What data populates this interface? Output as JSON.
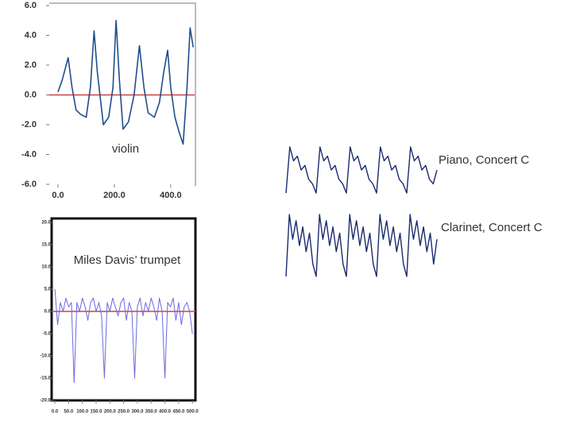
{
  "chart_data": [
    {
      "type": "line",
      "label": "violin",
      "color": "#1f4e8c",
      "zero_line": "#d04040",
      "x": [
        0,
        15,
        36,
        50,
        64,
        80,
        100,
        115,
        128,
        140,
        161,
        180,
        195,
        206,
        218,
        231,
        250,
        270,
        289,
        305,
        320,
        342,
        360,
        375,
        389,
        400,
        415,
        430,
        444,
        458,
        469,
        480
      ],
      "values": [
        0.2,
        1.0,
        2.5,
        0.5,
        -1.0,
        -1.3,
        -1.5,
        0.5,
        4.3,
        1.5,
        -2.0,
        -1.5,
        0.5,
        5.0,
        1.0,
        -2.3,
        -1.8,
        0.0,
        3.3,
        0.5,
        -1.2,
        -1.5,
        -0.5,
        1.5,
        3.0,
        0.5,
        -1.5,
        -2.5,
        -3.3,
        0.5,
        4.5,
        3.2
      ],
      "xlim": [
        -31,
        485
      ],
      "ylim": [
        -6,
        6
      ],
      "xticks": [
        {
          "value": 0,
          "label": "0.0"
        },
        {
          "value": 200,
          "label": "200.0"
        },
        {
          "value": 400,
          "label": "400.0"
        }
      ],
      "yticks": [
        {
          "value": 6,
          "label": "6.0"
        },
        {
          "value": 4,
          "label": "4.0"
        },
        {
          "value": 2,
          "label": "2.0"
        },
        {
          "value": 0,
          "label": "0.0"
        },
        {
          "value": -2,
          "label": "-2.0"
        },
        {
          "value": -4,
          "label": "-4.0"
        },
        {
          "value": -6,
          "label": "-6.0"
        }
      ]
    },
    {
      "type": "line",
      "label": "Miles Davis’ trumpet",
      "color": "#6a6adf",
      "zero_line": "#d04040",
      "x": [
        0,
        10,
        20,
        30,
        40,
        50,
        60,
        70,
        80,
        90,
        100,
        110,
        120,
        130,
        140,
        150,
        160,
        170,
        180,
        190,
        200,
        210,
        220,
        230,
        240,
        250,
        260,
        270,
        280,
        290,
        300,
        310,
        320,
        330,
        340,
        350,
        360,
        370,
        380,
        390,
        400,
        410,
        420,
        430,
        440,
        450,
        460,
        470,
        480,
        490,
        500
      ],
      "values": [
        5,
        -3,
        2,
        0,
        3,
        1,
        2,
        -16,
        2,
        0,
        3,
        1,
        -2,
        2,
        3,
        0,
        2,
        -1,
        -15,
        2,
        0,
        3,
        1,
        -1,
        2,
        3,
        -2,
        2,
        0,
        -15,
        1,
        3,
        -1,
        2,
        0,
        3,
        1,
        -2,
        3,
        0,
        -15,
        2,
        1,
        3,
        -2,
        2,
        -3,
        1,
        2,
        0,
        -5
      ],
      "xlim": [
        -6,
        511
      ],
      "ylim": [
        -20,
        20
      ],
      "xticks": [
        {
          "value": 0,
          "label": "0.0"
        },
        {
          "value": 50,
          "label": "50.0"
        },
        {
          "value": 100,
          "label": "100.0"
        },
        {
          "value": 150,
          "label": "150.0"
        },
        {
          "value": 200,
          "label": "200.0"
        },
        {
          "value": 250,
          "label": "250.0"
        },
        {
          "value": 300,
          "label": "300.0"
        },
        {
          "value": 350,
          "label": "350.0"
        },
        {
          "value": 400,
          "label": "400.0"
        },
        {
          "value": 450,
          "label": "450.0"
        },
        {
          "value": 500,
          "label": "500.0"
        }
      ],
      "yticks": [
        {
          "value": 20,
          "label": "20.0"
        },
        {
          "value": 15,
          "label": "15.0"
        },
        {
          "value": 10,
          "label": "10.0"
        },
        {
          "value": 5,
          "label": "5.0"
        },
        {
          "value": 0,
          "label": "0.0"
        },
        {
          "value": -5,
          "label": "-5.0"
        },
        {
          "value": -10,
          "label": "-10.0"
        },
        {
          "value": -15,
          "label": "-15.0"
        },
        {
          "value": -20,
          "label": "-20.0"
        }
      ]
    },
    {
      "type": "line",
      "label": "Piano, Concert C",
      "color": "#1a2a6e",
      "values": [
        0,
        10,
        7,
        8,
        5,
        6,
        3,
        2,
        0,
        10,
        7,
        8,
        5,
        6,
        3,
        2,
        0,
        10,
        7,
        8,
        5,
        6,
        3,
        2,
        0,
        10,
        7,
        8,
        5,
        6,
        3,
        2,
        0,
        10,
        7,
        8,
        5,
        6,
        3,
        2,
        5
      ]
    },
    {
      "type": "line",
      "label": "Clarinet, Concert C",
      "color": "#1a2a6e",
      "values": [
        0,
        10,
        6,
        9,
        5,
        8,
        4,
        7,
        2,
        0,
        10,
        6,
        9,
        5,
        8,
        4,
        7,
        2,
        0,
        10,
        6,
        9,
        5,
        8,
        4,
        7,
        2,
        0,
        10,
        6,
        9,
        5,
        8,
        4,
        7,
        2,
        0,
        10,
        6,
        9,
        5,
        8,
        4,
        7,
        2,
        6
      ]
    }
  ]
}
